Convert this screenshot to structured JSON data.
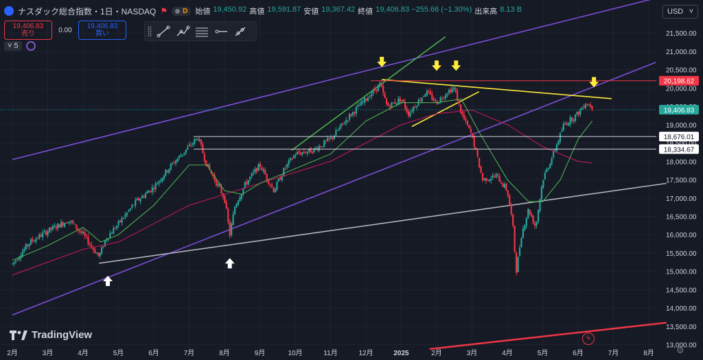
{
  "header": {
    "symbol": "ナスダック総合指数・1日・NASDAQ",
    "badge_letter": "D",
    "ohlc": [
      {
        "label": "始値",
        "value": "19,450.92"
      },
      {
        "label": "高値",
        "value": "19,591.87"
      },
      {
        "label": "安値",
        "value": "19,367.42"
      },
      {
        "label": "終値",
        "value": "19,406.83 −255.66 (−1.30%)"
      },
      {
        "label": "出来高",
        "value": "8.13 B"
      }
    ]
  },
  "trade": {
    "sell_price": "19,406.83",
    "sell_label": "売り",
    "spread": "0.00",
    "buy_price": "19,406.83",
    "buy_label": "買い"
  },
  "indicators": {
    "count": "5"
  },
  "currency": {
    "label": "USD"
  },
  "branding": {
    "name": "TradingView"
  },
  "colors": {
    "up": "#26a69a",
    "down": "#f23645",
    "channel": "#7b4fd8",
    "resistance": "#ffeb3b",
    "ma_short": "#4caf50",
    "ma_long": "#c2185b"
  },
  "chart_data": {
    "type": "candlestick",
    "interval": "1日",
    "ylim": [
      12900,
      22400
    ],
    "y_ticks": [
      13000,
      13500,
      14000,
      14500,
      15000,
      15500,
      16000,
      16500,
      17000,
      17500,
      18000,
      18500,
      19000,
      19500,
      20000,
      20500,
      21000,
      21500
    ],
    "y_tick_labels": [
      "13,000.00",
      "13,500.00",
      "14,000.00",
      "14,500.00",
      "15,000.00",
      "15,500.00",
      "16,000.00",
      "16,500.00",
      "17,000.00",
      "17,500.00",
      "18,000.00",
      "18,500.00",
      "19,000.00",
      "19,500.00",
      "20,000.00",
      "20,500.00",
      "21,000.00",
      "21,500.00"
    ],
    "x_ticks": [
      {
        "label": "2月",
        "t": 0
      },
      {
        "label": "3月",
        "t": 1
      },
      {
        "label": "4月",
        "t": 2
      },
      {
        "label": "5月",
        "t": 3
      },
      {
        "label": "6月",
        "t": 4
      },
      {
        "label": "7月",
        "t": 5
      },
      {
        "label": "8月",
        "t": 6
      },
      {
        "label": "9月",
        "t": 7
      },
      {
        "label": "10月",
        "t": 8
      },
      {
        "label": "11月",
        "t": 9
      },
      {
        "label": "12月",
        "t": 10
      },
      {
        "label": "2025",
        "t": 11
      },
      {
        "label": "2月",
        "t": 12
      },
      {
        "label": "3月",
        "t": 13
      },
      {
        "label": "4月",
        "t": 14
      },
      {
        "label": "5月",
        "t": 15
      },
      {
        "label": "6月",
        "t": 16
      },
      {
        "label": "7月",
        "t": 17
      },
      {
        "label": "8月",
        "t": 18
      }
    ],
    "price_path": [
      [
        0,
        15200
      ],
      [
        0.5,
        15800
      ],
      [
        1,
        16100
      ],
      [
        1.6,
        16400
      ],
      [
        2,
        16000
      ],
      [
        2.45,
        15400
      ],
      [
        2.65,
        15900
      ],
      [
        3,
        16300
      ],
      [
        3.5,
        16900
      ],
      [
        4,
        17300
      ],
      [
        4.5,
        17900
      ],
      [
        5,
        18400
      ],
      [
        5.25,
        18650
      ],
      [
        5.5,
        17900
      ],
      [
        6,
        17000
      ],
      [
        6.15,
        16000
      ],
      [
        6.3,
        16800
      ],
      [
        6.6,
        17400
      ],
      [
        7,
        17900
      ],
      [
        7.4,
        17200
      ],
      [
        7.7,
        17800
      ],
      [
        8,
        18200
      ],
      [
        8.5,
        18300
      ],
      [
        9,
        18600
      ],
      [
        9.5,
        19200
      ],
      [
        10,
        19700
      ],
      [
        10.4,
        20100
      ],
      [
        10.6,
        19500
      ],
      [
        11,
        19700
      ],
      [
        11.2,
        19300
      ],
      [
        11.7,
        19900
      ],
      [
        12,
        19600
      ],
      [
        12.3,
        19900
      ],
      [
        12.5,
        20000
      ],
      [
        12.7,
        19300
      ],
      [
        13,
        18700
      ],
      [
        13.3,
        17500
      ],
      [
        13.7,
        17600
      ],
      [
        14,
        17200
      ],
      [
        14.15,
        16300
      ],
      [
        14.25,
        15000
      ],
      [
        14.4,
        16000
      ],
      [
        14.6,
        16700
      ],
      [
        14.8,
        16200
      ],
      [
        15,
        17500
      ],
      [
        15.3,
        18200
      ],
      [
        15.6,
        19000
      ],
      [
        16,
        19300
      ],
      [
        16.2,
        19600
      ],
      [
        16.4,
        19500
      ]
    ],
    "ma_short_path": [
      [
        0,
        15300
      ],
      [
        1,
        15700
      ],
      [
        2,
        16200
      ],
      [
        2.5,
        15800
      ],
      [
        3,
        16000
      ],
      [
        4,
        16800
      ],
      [
        5,
        17900
      ],
      [
        5.5,
        17900
      ],
      [
        6,
        17200
      ],
      [
        6.5,
        17100
      ],
      [
        7,
        17400
      ],
      [
        8,
        17800
      ],
      [
        9,
        18200
      ],
      [
        10,
        19100
      ],
      [
        11,
        19600
      ],
      [
        12,
        19600
      ],
      [
        12.7,
        19700
      ],
      [
        13.2,
        18800
      ],
      [
        14,
        17500
      ],
      [
        14.6,
        16900
      ],
      [
        15,
        16900
      ],
      [
        15.5,
        17500
      ],
      [
        16,
        18600
      ],
      [
        16.4,
        19100
      ]
    ],
    "ma_long_path": [
      [
        0,
        14900
      ],
      [
        2,
        15600
      ],
      [
        3,
        15800
      ],
      [
        4,
        16300
      ],
      [
        5,
        16800
      ],
      [
        6,
        17100
      ],
      [
        7,
        17400
      ],
      [
        8,
        17700
      ],
      [
        9,
        18000
      ],
      [
        10,
        18500
      ],
      [
        11,
        19000
      ],
      [
        12,
        19300
      ],
      [
        13,
        19400
      ],
      [
        14,
        19000
      ],
      [
        15,
        18400
      ],
      [
        16,
        18000
      ],
      [
        16.4,
        17950
      ]
    ],
    "horizontal_levels": [
      {
        "price": 20198.62,
        "label": "20,198.62",
        "color": "#f23645",
        "style": "solid"
      },
      {
        "price": 18676.01,
        "label": "18,676.01",
        "color": "#d1d4dc",
        "style": "solid"
      },
      {
        "price": 18334.67,
        "label": "18,334.67",
        "color": "#d1d4dc",
        "style": "solid"
      }
    ],
    "last_price": {
      "price": 19406.83,
      "label": "19,406.83",
      "color": "#26a69a"
    },
    "trendlines": [
      {
        "name": "channel-upper",
        "color": "#7b4fd8",
        "p1": [
          0,
          18050
        ],
        "p2": [
          18.2,
          22450
        ]
      },
      {
        "name": "channel-lower",
        "color": "#7b4fd8",
        "p1": [
          0,
          13810
        ],
        "p2": [
          18.2,
          20700
        ]
      },
      {
        "name": "long-support",
        "color": "#b2b5be",
        "p1": [
          2.45,
          15220
        ],
        "p2": [
          18.5,
          17400
        ]
      },
      {
        "name": "resistance",
        "color": "#ffeb3b",
        "p1": [
          10.45,
          20230
        ],
        "p2": [
          16.95,
          19710
        ]
      },
      {
        "name": "bull-channel",
        "color": "#4caf50",
        "p1": [
          7.9,
          18300
        ],
        "p2": [
          12.25,
          21400
        ]
      },
      {
        "name": "wedge",
        "color": "#ffeb3b",
        "p1": [
          11.3,
          18950
        ],
        "p2": [
          13.2,
          19900
        ]
      },
      {
        "name": "bottom-line",
        "color": "#f23645",
        "p1": [
          11.8,
          12880
        ],
        "p2": [
          18.5,
          13600
        ]
      }
    ],
    "markers": [
      {
        "type": "arrow-down",
        "color": "#ffeb3b",
        "t": 10.45,
        "price": 20700
      },
      {
        "type": "arrow-down",
        "color": "#ffeb3b",
        "t": 12.0,
        "price": 20600
      },
      {
        "type": "arrow-down",
        "color": "#ffeb3b",
        "t": 12.55,
        "price": 20600
      },
      {
        "type": "arrow-down",
        "color": "#ffeb3b",
        "t": 16.45,
        "price": 20150
      },
      {
        "type": "arrow-up",
        "color": "#ffffff",
        "t": 2.7,
        "price": 14750
      },
      {
        "type": "arrow-up",
        "color": "#ffffff",
        "t": 6.15,
        "price": 15230
      }
    ]
  }
}
